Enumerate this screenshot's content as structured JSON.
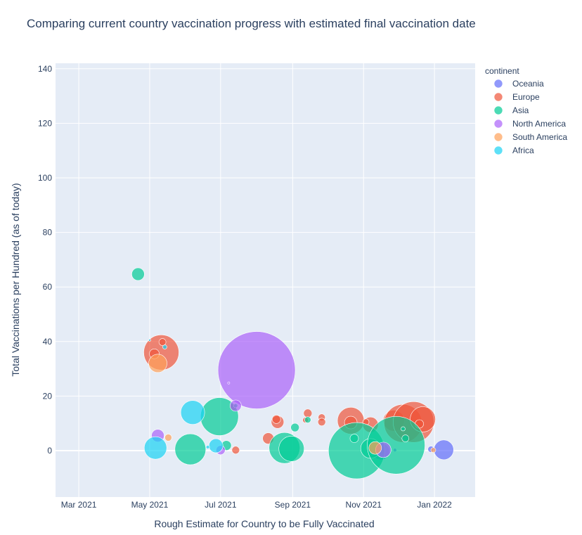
{
  "chart_data": {
    "type": "scatter",
    "subtype": "bubble",
    "title": "Comparing current country vaccination progress with estimated final vaccination date",
    "xlabel": "Rough Estimate for Country to be Fully Vaccinated",
    "ylabel": "Total Vaccinations per Hundred (as of today)",
    "xlim": [
      "2021-02-09",
      "2022-02-05"
    ],
    "ylim": [
      -17,
      142
    ],
    "x_ticks": [
      {
        "date": "2021-03-01",
        "label": "Mar 2021"
      },
      {
        "date": "2021-05-01",
        "label": "May 2021"
      },
      {
        "date": "2021-07-01",
        "label": "Jul 2021"
      },
      {
        "date": "2021-09-01",
        "label": "Sep 2021"
      },
      {
        "date": "2021-11-01",
        "label": "Nov 2021"
      },
      {
        "date": "2022-01-01",
        "label": "Jan 2022"
      }
    ],
    "y_ticks": [
      0,
      20,
      40,
      60,
      80,
      100,
      120,
      140
    ],
    "legend_title": "continent",
    "legend_position": "right",
    "grid": true,
    "series": [
      {
        "name": "Oceania",
        "color": "#636efa",
        "points": [
          {
            "x": "2021-12-29",
            "y": 0.5,
            "size": 9
          },
          {
            "x": "2022-01-09",
            "y": 0.3,
            "size": 28
          },
          {
            "x": "2021-11-16",
            "y": -0.3,
            "size": 24
          },
          {
            "x": "2021-11-28",
            "y": 0.2,
            "size": 5
          }
        ]
      },
      {
        "name": "Europe",
        "color": "#EF553B",
        "points": [
          {
            "x": "2021-05-11",
            "y": 36,
            "size": 50
          },
          {
            "x": "2021-05-05",
            "y": 35.5,
            "size": 14
          },
          {
            "x": "2021-05-12",
            "y": 39.8,
            "size": 10
          },
          {
            "x": "2021-07-12",
            "y": 16,
            "size": 10
          },
          {
            "x": "2021-07-14",
            "y": 0.2,
            "size": 11
          },
          {
            "x": "2021-08-11",
            "y": 4.5,
            "size": 16
          },
          {
            "x": "2021-08-19",
            "y": 10.5,
            "size": 18
          },
          {
            "x": "2021-08-18",
            "y": 11.5,
            "size": 12
          },
          {
            "x": "2021-09-14",
            "y": 13.7,
            "size": 12
          },
          {
            "x": "2021-09-12",
            "y": 11.2,
            "size": 8
          },
          {
            "x": "2021-09-26",
            "y": 12.2,
            "size": 10
          },
          {
            "x": "2021-09-26",
            "y": 10.5,
            "size": 11
          },
          {
            "x": "2021-10-21",
            "y": 11,
            "size": 38
          },
          {
            "x": "2021-10-21",
            "y": 10.3,
            "size": 18
          },
          {
            "x": "2021-11-07",
            "y": 9.5,
            "size": 22
          },
          {
            "x": "2021-11-03",
            "y": 10.5,
            "size": 9
          },
          {
            "x": "2021-11-27",
            "y": 11,
            "size": 30
          },
          {
            "x": "2021-12-05",
            "y": 10,
            "size": 54
          },
          {
            "x": "2021-12-14",
            "y": 10.5,
            "size": 58
          },
          {
            "x": "2021-12-22",
            "y": 11.5,
            "size": 36
          },
          {
            "x": "2021-12-19",
            "y": 9.8,
            "size": 12
          }
        ]
      },
      {
        "name": "Asia",
        "color": "#00cc96",
        "points": [
          {
            "x": "2021-04-21",
            "y": 64.7,
            "size": 18
          },
          {
            "x": "2021-06-05",
            "y": 0.5,
            "size": 44
          },
          {
            "x": "2021-06-30",
            "y": 12.5,
            "size": 54
          },
          {
            "x": "2021-07-06",
            "y": 1.9,
            "size": 14
          },
          {
            "x": "2021-07-14",
            "y": 16.5,
            "size": 6
          },
          {
            "x": "2021-08-25",
            "y": 1,
            "size": 44
          },
          {
            "x": "2021-08-31",
            "y": 0.7,
            "size": 36
          },
          {
            "x": "2021-09-03",
            "y": 8.5,
            "size": 12
          },
          {
            "x": "2021-09-14",
            "y": 11.3,
            "size": 9
          },
          {
            "x": "2021-10-26",
            "y": 0,
            "size": 80
          },
          {
            "x": "2021-10-24",
            "y": 4.5,
            "size": 12
          },
          {
            "x": "2021-11-07",
            "y": 0.8,
            "size": 28
          },
          {
            "x": "2021-11-29",
            "y": 2,
            "size": 82
          },
          {
            "x": "2021-12-05",
            "y": 8,
            "size": 6
          },
          {
            "x": "2021-12-07",
            "y": 4.5,
            "size": 10
          }
        ]
      },
      {
        "name": "North America",
        "color": "#ab63fa",
        "points": [
          {
            "x": "2021-08-01",
            "y": 29.5,
            "size": 110
          },
          {
            "x": "2021-05-08",
            "y": 5.5,
            "size": 18
          },
          {
            "x": "2021-07-14",
            "y": 16.5,
            "size": 16
          },
          {
            "x": "2021-07-01",
            "y": 0.2,
            "size": 13
          },
          {
            "x": "2021-07-08",
            "y": 24.8,
            "size": 3
          },
          {
            "x": "2021-11-18",
            "y": 0.3,
            "size": 22
          }
        ]
      },
      {
        "name": "South America",
        "color": "#FFA15A",
        "points": [
          {
            "x": "2021-05-08",
            "y": 32,
            "size": 26
          },
          {
            "x": "2021-05-17",
            "y": 4.8,
            "size": 10
          },
          {
            "x": "2021-11-11",
            "y": 1,
            "size": 18
          },
          {
            "x": "2021-12-31",
            "y": 0.2,
            "size": 7
          }
        ]
      },
      {
        "name": "Africa",
        "color": "#19d3f3",
        "points": [
          {
            "x": "2021-05-06",
            "y": 1,
            "size": 32
          },
          {
            "x": "2021-06-07",
            "y": 14,
            "size": 34
          },
          {
            "x": "2021-06-27",
            "y": 1.8,
            "size": 20
          },
          {
            "x": "2021-06-20",
            "y": 1.3,
            "size": 5
          },
          {
            "x": "2021-05-14",
            "y": 38,
            "size": 6
          },
          {
            "x": "2021-05-01",
            "y": 40.5,
            "size": 3
          }
        ]
      }
    ]
  }
}
